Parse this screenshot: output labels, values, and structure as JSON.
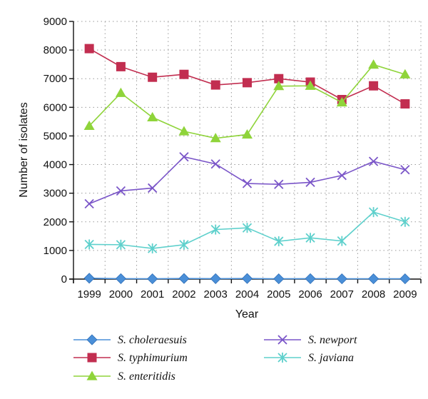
{
  "chart_data": {
    "type": "line",
    "title": "",
    "xlabel": "Year",
    "ylabel": "Number of isolates",
    "x": [
      "1999",
      "2000",
      "2001",
      "2002",
      "2003",
      "2004",
      "2005",
      "2006",
      "2007",
      "2008",
      "2009"
    ],
    "ylim": [
      0,
      9000
    ],
    "yticks": [
      "0",
      "1000",
      "2000",
      "3000",
      "4000",
      "5000",
      "6000",
      "7000",
      "8000",
      "9000"
    ],
    "grid": true,
    "legend_position": "bottom",
    "series": [
      {
        "name": "S. choleraesuis",
        "color": "#4a8fd8",
        "marker": "diamond",
        "values": [
          30,
          15,
          10,
          20,
          15,
          20,
          10,
          15,
          10,
          10,
          10
        ]
      },
      {
        "name": "S. typhimurium",
        "color": "#c22e50",
        "marker": "square",
        "values": [
          8050,
          7420,
          7050,
          7150,
          6780,
          6860,
          7000,
          6880,
          6270,
          6750,
          6120
        ]
      },
      {
        "name": "S. enteritidis",
        "color": "#8fd43a",
        "marker": "triangle",
        "values": [
          5350,
          6500,
          5650,
          5160,
          4920,
          5050,
          6740,
          6750,
          6170,
          7490,
          7150
        ]
      },
      {
        "name": "S. newport",
        "color": "#7a55c8",
        "marker": "x",
        "values": [
          2630,
          3080,
          3180,
          4270,
          4020,
          3340,
          3310,
          3380,
          3620,
          4110,
          3820
        ]
      },
      {
        "name": "S. javiana",
        "color": "#5ed0cc",
        "marker": "star",
        "values": [
          1210,
          1200,
          1070,
          1200,
          1730,
          1790,
          1320,
          1440,
          1330,
          2340,
          2000
        ]
      }
    ]
  }
}
